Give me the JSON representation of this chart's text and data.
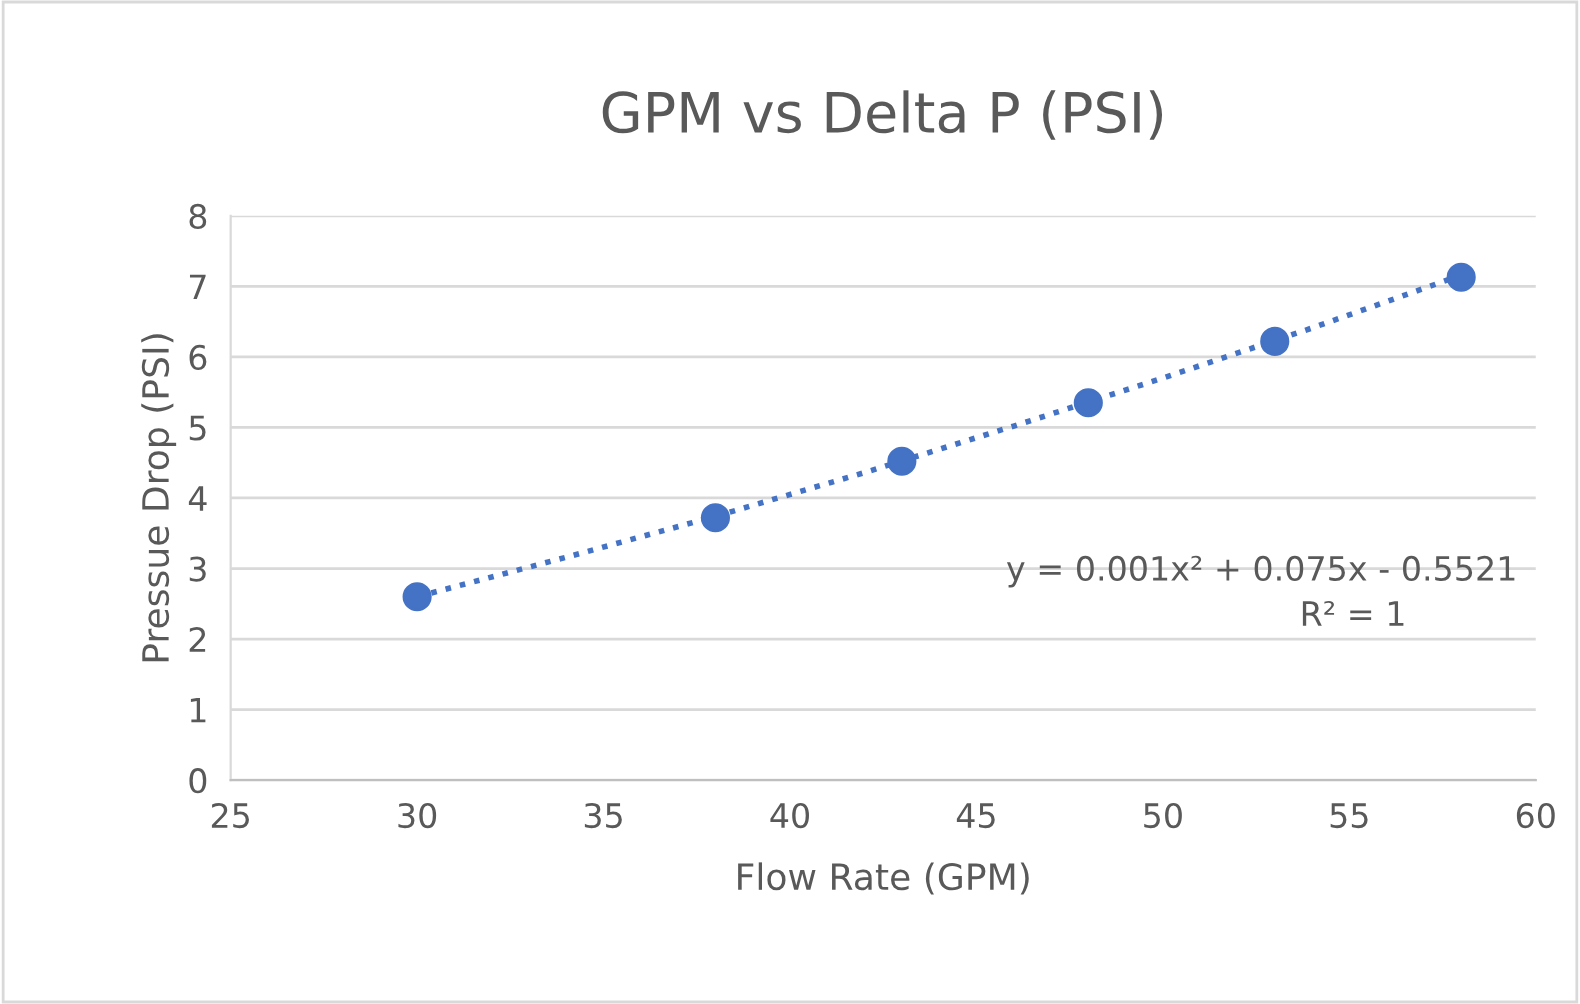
{
  "chart_data": {
    "type": "scatter",
    "title": "GPM vs Delta P (PSI)",
    "xlabel": "Flow Rate (GPM)",
    "ylabel": "Pressue Drop (PSI)",
    "series": [
      {
        "color": "#4472c4",
        "marker": "circle",
        "x": [
          30,
          38,
          43,
          48,
          53,
          58
        ],
        "values": [
          2.6,
          3.72,
          4.52,
          5.35,
          6.22,
          7.13
        ]
      },
      {
        "type": "line",
        "color": "#4472c4",
        "line_style": "dotted",
        "marker": "none",
        "x": [
          30,
          34,
          38,
          42,
          46,
          50,
          54,
          58
        ],
        "values": [
          2.6,
          3.16,
          3.74,
          4.36,
          5.02,
          5.7,
          6.41,
          7.16
        ]
      }
    ],
    "annotations": [
      "y = 0.001x² + 0.075x - 0.5521",
      "R² = 1"
    ],
    "xlim": [
      25,
      60
    ],
    "xticks": [
      25,
      30,
      35,
      40,
      45,
      50,
      55,
      60
    ],
    "ylim": [
      0,
      8
    ],
    "yticks": [
      0,
      1,
      2,
      3,
      4,
      5,
      6,
      7,
      8
    ],
    "grid": "y",
    "legend": false
  }
}
